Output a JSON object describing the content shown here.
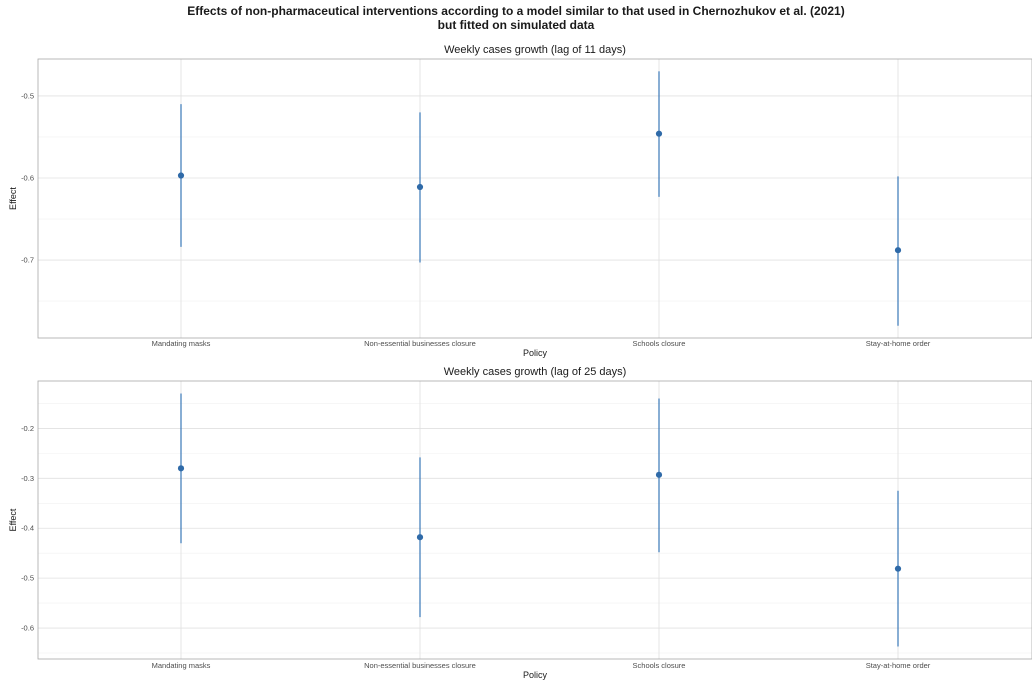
{
  "title_lines": [
    "Effects of non-pharmaceutical interventions according to a model similar to that used in Chernozhukov et al. (2021)",
    "but fitted on simulated data"
  ],
  "chart_data": [
    {
      "type": "scatter",
      "title": "Weekly cases growth (lag of 11 days)",
      "xlabel": "Policy",
      "ylabel": "Effect",
      "categories": [
        "Mandating masks",
        "Non-essential businesses closure",
        "Schools closure",
        "Stay-at-home order"
      ],
      "values": [
        -0.597,
        -0.611,
        -0.546,
        -0.688
      ],
      "lower": [
        -0.684,
        -0.703,
        -0.623,
        -0.78
      ],
      "upper": [
        -0.51,
        -0.52,
        -0.47,
        -0.598
      ],
      "ylim": [
        -0.795,
        -0.455
      ],
      "yticks": [
        -0.5,
        -0.6,
        -0.7
      ],
      "ytick_labels": [
        "-0.5",
        "-0.6",
        "-0.7"
      ],
      "grid": true,
      "colors": {
        "point": "#2f6aa8",
        "errorbar": "#3a78b8",
        "grid": "#e0e0e0"
      }
    },
    {
      "type": "scatter",
      "title": "Weekly cases growth (lag of 25 days)",
      "xlabel": "Policy",
      "ylabel": "Effect",
      "categories": [
        "Mandating masks",
        "Non-essential businesses closure",
        "Schools closure",
        "Stay-at-home order"
      ],
      "values": [
        -0.28,
        -0.418,
        -0.293,
        -0.481
      ],
      "lower": [
        -0.43,
        -0.578,
        -0.448,
        -0.637
      ],
      "upper": [
        -0.13,
        -0.258,
        -0.14,
        -0.325
      ],
      "ylim": [
        -0.662,
        -0.105
      ],
      "yticks": [
        -0.2,
        -0.3,
        -0.4,
        -0.5,
        -0.6
      ],
      "ytick_labels": [
        "-0.2",
        "-0.3",
        "-0.4",
        "-0.5",
        "-0.6"
      ],
      "grid": true,
      "colors": {
        "point": "#2f6aa8",
        "errorbar": "#3a78b8",
        "grid": "#e0e0e0"
      }
    }
  ]
}
